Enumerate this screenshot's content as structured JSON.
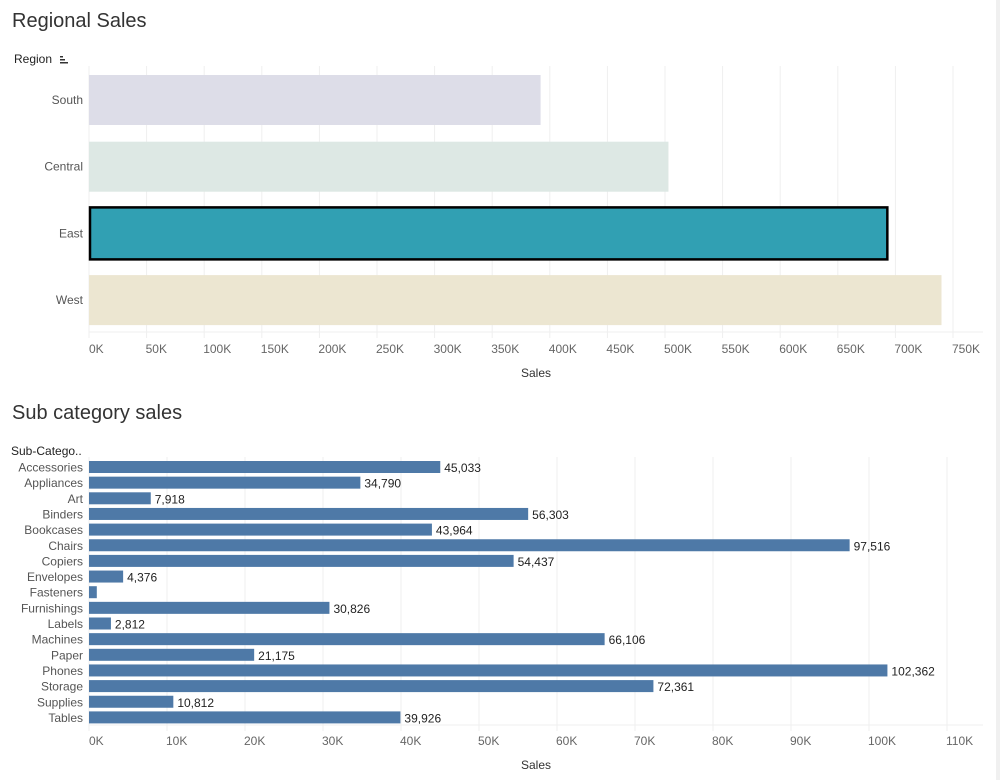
{
  "chart_data": [
    {
      "type": "bar",
      "orientation": "horizontal",
      "title": "Regional Sales",
      "row_header": "Region",
      "xlabel": "Sales",
      "ylabel": "Region",
      "categories": [
        "South",
        "Central",
        "East",
        "West"
      ],
      "values": [
        392000,
        503000,
        693000,
        740000
      ],
      "colors": [
        "#dddde8",
        "#dde8e4",
        "#31a0b3",
        "#ece6d1"
      ],
      "highlighted": "East",
      "highlight_outline": "#000000",
      "xlim": [
        0,
        780000
      ],
      "xticks": [
        0,
        50000,
        100000,
        150000,
        200000,
        250000,
        300000,
        350000,
        400000,
        450000,
        500000,
        550000,
        600000,
        650000,
        700000,
        750000
      ],
      "xtick_labels": [
        "0K",
        "50K",
        "100K",
        "150K",
        "200K",
        "250K",
        "300K",
        "350K",
        "400K",
        "450K",
        "500K",
        "550K",
        "600K",
        "650K",
        "700K",
        "750K"
      ],
      "grid": true,
      "data_labels": false
    },
    {
      "type": "bar",
      "orientation": "horizontal",
      "title": "Sub category sales",
      "row_header": "Sub-Catego..",
      "xlabel": "Sales",
      "ylabel": "Sub-Category",
      "categories": [
        "Accessories",
        "Appliances",
        "Art",
        "Binders",
        "Bookcases",
        "Chairs",
        "Copiers",
        "Envelopes",
        "Fasteners",
        "Furnishings",
        "Labels",
        "Machines",
        "Paper",
        "Phones",
        "Storage",
        "Supplies",
        "Tables"
      ],
      "values": [
        45033,
        34790,
        7918,
        56303,
        43964,
        97516,
        54437,
        4376,
        1000,
        30826,
        2812,
        66106,
        21175,
        102362,
        72361,
        10812,
        39926
      ],
      "data_labels": [
        "45,033",
        "34,790",
        "7,918",
        "56,303",
        "43,964",
        "97,516",
        "54,437",
        "4,376",
        "",
        "30,826",
        "2,812",
        "66,106",
        "21,175",
        "102,362",
        "72,361",
        "10,812",
        "39,926"
      ],
      "color": "#4e79a7",
      "xlim": [
        0,
        114000
      ],
      "xticks": [
        0,
        10000,
        20000,
        30000,
        40000,
        50000,
        60000,
        70000,
        80000,
        90000,
        100000,
        110000
      ],
      "xtick_labels": [
        "0K",
        "10K",
        "20K",
        "30K",
        "40K",
        "50K",
        "60K",
        "70K",
        "80K",
        "90K",
        "100K",
        "110K"
      ],
      "grid": true
    }
  ],
  "colors": {
    "title": "#333333",
    "tick_label": "#666666",
    "category_label": "#555555",
    "gridline": "#efefef",
    "axis_title": "#333333"
  }
}
